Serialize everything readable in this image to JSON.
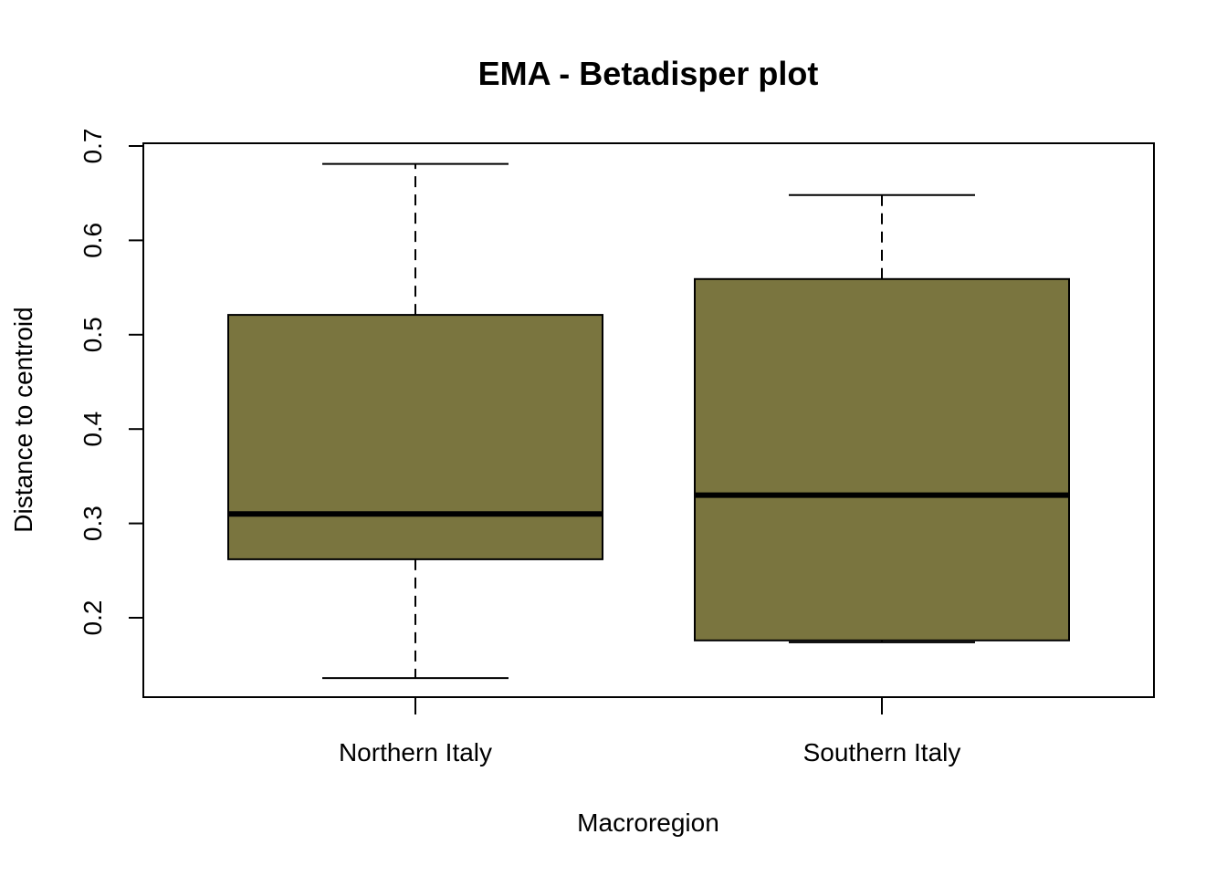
{
  "chart_data": {
    "type": "box",
    "title": "EMA - Betadisper plot",
    "xlabel": "Macroregion",
    "ylabel": "Distance to centroid",
    "ylim": [
      0.115,
      0.7
    ],
    "yticks": [
      0.2,
      0.3,
      0.4,
      0.5,
      0.6,
      0.7
    ],
    "ytick_labels": [
      "0.2",
      "0.3",
      "0.4",
      "0.5",
      "0.6",
      "0.7"
    ],
    "grid": false,
    "box_color": "#7A753F",
    "categories": [
      "Northern Italy",
      "Southern Italy"
    ],
    "boxes": [
      {
        "name": "Northern Italy",
        "min": 0.136,
        "q1": 0.262,
        "median": 0.31,
        "q3": 0.521,
        "max": 0.681
      },
      {
        "name": "Southern Italy",
        "min": 0.174,
        "q1": 0.176,
        "median": 0.33,
        "q3": 0.559,
        "max": 0.648
      }
    ]
  }
}
